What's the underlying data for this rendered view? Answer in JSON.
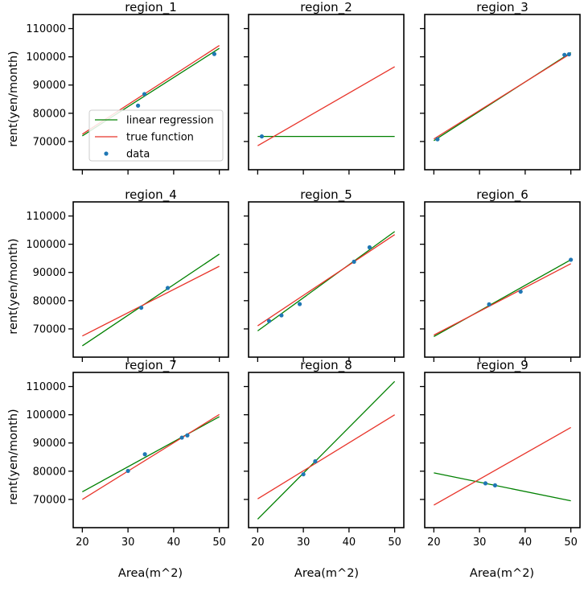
{
  "chart_data": {
    "type": "line",
    "layout": "3x3 grid of subplots, shared axes",
    "xlabel": "Area(m^2)",
    "ylabel": "rent(yen/month)",
    "xlim": [
      18,
      52
    ],
    "ylim": [
      60000,
      115000
    ],
    "xticks": [
      20,
      30,
      40,
      50
    ],
    "yticks": [
      70000,
      80000,
      90000,
      100000,
      110000
    ],
    "legend": {
      "placement": "inside region_1, lower-right",
      "entries": [
        {
          "label": "linear regression",
          "kind": "line",
          "color": "#008000"
        },
        {
          "label": "true function",
          "kind": "line",
          "color": "#e8342a"
        },
        {
          "label": "data",
          "kind": "marker",
          "color": "#1f77b4"
        }
      ]
    },
    "colors": {
      "regression": "#008000",
      "true_function": "#e8342a",
      "data": "#1f77b4"
    },
    "panels": [
      {
        "title": "region_1",
        "regression": {
          "x": [
            20,
            50
          ],
          "y": [
            72000,
            103000
          ]
        },
        "true_function": {
          "x": [
            20,
            50
          ],
          "y": [
            72600,
            104000
          ]
        },
        "data": [
          [
            32.2,
            82700
          ],
          [
            33.6,
            86800
          ],
          [
            48.9,
            101000
          ]
        ]
      },
      {
        "title": "region_2",
        "regression": {
          "x": [
            20,
            50
          ],
          "y": [
            71800,
            71800
          ]
        },
        "true_function": {
          "x": [
            20,
            50
          ],
          "y": [
            68500,
            96500
          ]
        },
        "data": [
          [
            20.9,
            71800
          ]
        ]
      },
      {
        "title": "region_3",
        "regression": {
          "x": [
            20,
            50
          ],
          "y": [
            70300,
            101500
          ]
        },
        "true_function": {
          "x": [
            20,
            50
          ],
          "y": [
            70900,
            101200
          ]
        },
        "data": [
          [
            20.8,
            70800
          ],
          [
            48.6,
            100700
          ],
          [
            49.6,
            100900
          ]
        ]
      },
      {
        "title": "region_4",
        "regression": {
          "x": [
            20,
            50
          ],
          "y": [
            64000,
            96500
          ]
        },
        "true_function": {
          "x": [
            20,
            50
          ],
          "y": [
            67500,
            92200
          ]
        },
        "data": [
          [
            32.9,
            77500
          ],
          [
            38.7,
            84500
          ]
        ]
      },
      {
        "title": "region_5",
        "regression": {
          "x": [
            20,
            50
          ],
          "y": [
            69300,
            104500
          ]
        },
        "true_function": {
          "x": [
            20,
            50
          ],
          "y": [
            71100,
            103400
          ]
        },
        "data": [
          [
            22.5,
            72800
          ],
          [
            25.2,
            74800
          ],
          [
            29.2,
            78800
          ],
          [
            41.1,
            93800
          ],
          [
            44.5,
            98900
          ]
        ]
      },
      {
        "title": "region_6",
        "regression": {
          "x": [
            20,
            50
          ],
          "y": [
            67300,
            94500
          ]
        },
        "true_function": {
          "x": [
            20,
            50
          ],
          "y": [
            67800,
            93100
          ]
        },
        "data": [
          [
            32.1,
            78700
          ],
          [
            39.0,
            83200
          ],
          [
            50.0,
            94500
          ]
        ]
      },
      {
        "title": "region_7",
        "regression": {
          "x": [
            20,
            50
          ],
          "y": [
            72700,
            99300
          ]
        },
        "true_function": {
          "x": [
            20,
            50
          ],
          "y": [
            70000,
            100100
          ]
        },
        "data": [
          [
            30.0,
            80100
          ],
          [
            33.7,
            86000
          ],
          [
            41.8,
            91900
          ],
          [
            43.0,
            92700
          ]
        ]
      },
      {
        "title": "region_8",
        "regression": {
          "x": [
            20,
            50
          ],
          "y": [
            63000,
            111800
          ]
        },
        "true_function": {
          "x": [
            20,
            50
          ],
          "y": [
            70200,
            100000
          ]
        },
        "data": [
          [
            30.0,
            78900
          ],
          [
            32.6,
            83500
          ]
        ]
      },
      {
        "title": "region_9",
        "regression": {
          "x": [
            20,
            50
          ],
          "y": [
            79400,
            69500
          ]
        },
        "true_function": {
          "x": [
            20,
            50
          ],
          "y": [
            68000,
            95500
          ]
        },
        "data": [
          [
            31.3,
            75700
          ],
          [
            33.4,
            75000
          ]
        ]
      }
    ]
  }
}
